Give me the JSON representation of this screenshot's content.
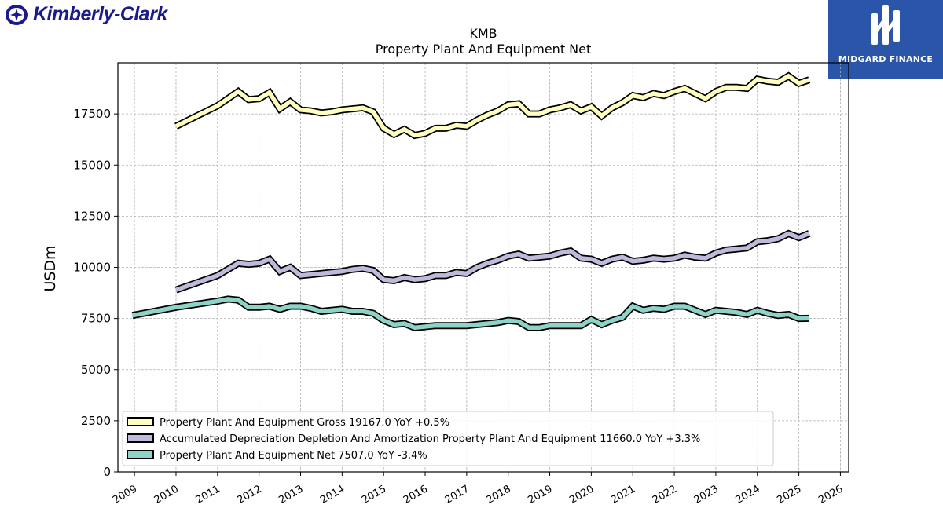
{
  "brand": {
    "company": "Kimberly-Clark",
    "logo_icon": "kimberly-clark-logo-icon"
  },
  "partner": {
    "name": "MIDGARD FINANCE",
    "logo_icon": "midgard-logo-icon",
    "bg_color": "#2a55a8"
  },
  "chart_data": {
    "type": "line",
    "title": "KMB",
    "subtitle": "Property Plant And Equipment Net",
    "ylabel": "USDm",
    "xlabel": "",
    "ylim": [
      0,
      20000
    ],
    "xlim": [
      2008.6,
      2026.2
    ],
    "yticks": [
      0,
      2500,
      5000,
      7500,
      10000,
      12500,
      15000,
      17500
    ],
    "xticks": [
      2009,
      2010,
      2011,
      2012,
      2013,
      2014,
      2015,
      2016,
      2017,
      2018,
      2019,
      2020,
      2021,
      2022,
      2023,
      2024,
      2025,
      2026
    ],
    "grid": true,
    "legend_position": "lower-left",
    "series": [
      {
        "name": "Property Plant And Equipment Gross",
        "legend_label": "Property Plant And Equipment Gross  19167.0 YoY +0.5%",
        "color": "#ffffc0",
        "points": [
          [
            2010.0,
            16900
          ],
          [
            2011.0,
            17900
          ],
          [
            2011.5,
            18600
          ],
          [
            2011.75,
            18200
          ],
          [
            2012.0,
            18250
          ],
          [
            2012.25,
            18550
          ],
          [
            2012.5,
            17750
          ],
          [
            2012.75,
            18100
          ],
          [
            2013.0,
            17700
          ],
          [
            2013.25,
            17650
          ],
          [
            2013.5,
            17550
          ],
          [
            2013.75,
            17600
          ],
          [
            2014.0,
            17700
          ],
          [
            2014.25,
            17750
          ],
          [
            2014.5,
            17800
          ],
          [
            2014.75,
            17600
          ],
          [
            2015.0,
            16800
          ],
          [
            2015.25,
            16500
          ],
          [
            2015.5,
            16750
          ],
          [
            2015.75,
            16450
          ],
          [
            2016.0,
            16550
          ],
          [
            2016.25,
            16800
          ],
          [
            2016.5,
            16800
          ],
          [
            2016.75,
            16950
          ],
          [
            2017.0,
            16900
          ],
          [
            2017.25,
            17200
          ],
          [
            2017.5,
            17450
          ],
          [
            2017.75,
            17650
          ],
          [
            2018.0,
            17950
          ],
          [
            2018.25,
            18000
          ],
          [
            2018.5,
            17500
          ],
          [
            2018.75,
            17500
          ],
          [
            2019.0,
            17700
          ],
          [
            2019.25,
            17800
          ],
          [
            2019.5,
            17950
          ],
          [
            2019.75,
            17650
          ],
          [
            2020.0,
            17850
          ],
          [
            2020.25,
            17400
          ],
          [
            2020.5,
            17800
          ],
          [
            2020.75,
            18050
          ],
          [
            2021.0,
            18400
          ],
          [
            2021.25,
            18300
          ],
          [
            2021.5,
            18500
          ],
          [
            2021.75,
            18400
          ],
          [
            2022.0,
            18600
          ],
          [
            2022.25,
            18750
          ],
          [
            2022.5,
            18500
          ],
          [
            2022.75,
            18250
          ],
          [
            2023.0,
            18600
          ],
          [
            2023.25,
            18800
          ],
          [
            2023.5,
            18800
          ],
          [
            2023.75,
            18750
          ],
          [
            2024.0,
            19200
          ],
          [
            2024.25,
            19100
          ],
          [
            2024.5,
            19050
          ],
          [
            2024.75,
            19350
          ],
          [
            2025.0,
            19000
          ],
          [
            2025.25,
            19167
          ]
        ]
      },
      {
        "name": "Accumulated Depreciation Depletion And Amortization Property Plant And Equipment",
        "legend_label": "Accumulated Depreciation Depletion And Amortization Property Plant And Equipment  11660.0 YoY +3.3%",
        "color": "#bebadb",
        "points": [
          [
            2010.0,
            8900
          ],
          [
            2011.0,
            9600
          ],
          [
            2011.5,
            10200
          ],
          [
            2011.75,
            10150
          ],
          [
            2012.0,
            10200
          ],
          [
            2012.25,
            10400
          ],
          [
            2012.5,
            9800
          ],
          [
            2012.75,
            10000
          ],
          [
            2013.0,
            9600
          ],
          [
            2013.25,
            9650
          ],
          [
            2013.5,
            9700
          ],
          [
            2013.75,
            9750
          ],
          [
            2014.0,
            9800
          ],
          [
            2014.25,
            9900
          ],
          [
            2014.5,
            9950
          ],
          [
            2014.75,
            9850
          ],
          [
            2015.0,
            9400
          ],
          [
            2015.25,
            9350
          ],
          [
            2015.5,
            9500
          ],
          [
            2015.75,
            9400
          ],
          [
            2016.0,
            9450
          ],
          [
            2016.25,
            9600
          ],
          [
            2016.5,
            9600
          ],
          [
            2016.75,
            9750
          ],
          [
            2017.0,
            9700
          ],
          [
            2017.25,
            10000
          ],
          [
            2017.5,
            10200
          ],
          [
            2017.75,
            10350
          ],
          [
            2018.0,
            10550
          ],
          [
            2018.25,
            10650
          ],
          [
            2018.5,
            10450
          ],
          [
            2018.75,
            10500
          ],
          [
            2019.0,
            10550
          ],
          [
            2019.25,
            10700
          ],
          [
            2019.5,
            10800
          ],
          [
            2019.75,
            10450
          ],
          [
            2020.0,
            10400
          ],
          [
            2020.25,
            10200
          ],
          [
            2020.5,
            10400
          ],
          [
            2020.75,
            10500
          ],
          [
            2021.0,
            10300
          ],
          [
            2021.25,
            10350
          ],
          [
            2021.5,
            10450
          ],
          [
            2021.75,
            10400
          ],
          [
            2022.0,
            10450
          ],
          [
            2022.25,
            10600
          ],
          [
            2022.5,
            10500
          ],
          [
            2022.75,
            10450
          ],
          [
            2023.0,
            10700
          ],
          [
            2023.25,
            10850
          ],
          [
            2023.5,
            10900
          ],
          [
            2023.75,
            10950
          ],
          [
            2024.0,
            11250
          ],
          [
            2024.25,
            11300
          ],
          [
            2024.5,
            11400
          ],
          [
            2024.75,
            11650
          ],
          [
            2025.0,
            11450
          ],
          [
            2025.25,
            11660
          ]
        ]
      },
      {
        "name": "Property Plant And Equipment Net",
        "legend_label": "Property Plant And Equipment Net  7507.0 YoY -3.4%",
        "color": "#8dd3c7",
        "points": [
          [
            2008.95,
            7650
          ],
          [
            2010.0,
            8050
          ],
          [
            2011.0,
            8350
          ],
          [
            2011.25,
            8450
          ],
          [
            2011.5,
            8400
          ],
          [
            2011.75,
            8050
          ],
          [
            2012.0,
            8050
          ],
          [
            2012.25,
            8100
          ],
          [
            2012.5,
            7950
          ],
          [
            2012.75,
            8100
          ],
          [
            2013.0,
            8100
          ],
          [
            2013.25,
            8000
          ],
          [
            2013.5,
            7850
          ],
          [
            2013.75,
            7900
          ],
          [
            2014.0,
            7950
          ],
          [
            2014.25,
            7850
          ],
          [
            2014.5,
            7850
          ],
          [
            2014.75,
            7750
          ],
          [
            2015.0,
            7400
          ],
          [
            2015.25,
            7200
          ],
          [
            2015.5,
            7250
          ],
          [
            2015.75,
            7050
          ],
          [
            2016.0,
            7100
          ],
          [
            2016.25,
            7150
          ],
          [
            2016.5,
            7150
          ],
          [
            2016.75,
            7150
          ],
          [
            2017.0,
            7150
          ],
          [
            2017.25,
            7200
          ],
          [
            2017.5,
            7250
          ],
          [
            2017.75,
            7300
          ],
          [
            2018.0,
            7400
          ],
          [
            2018.25,
            7350
          ],
          [
            2018.5,
            7050
          ],
          [
            2018.75,
            7050
          ],
          [
            2019.0,
            7150
          ],
          [
            2019.25,
            7150
          ],
          [
            2019.5,
            7150
          ],
          [
            2019.75,
            7150
          ],
          [
            2020.0,
            7450
          ],
          [
            2020.25,
            7200
          ],
          [
            2020.5,
            7400
          ],
          [
            2020.75,
            7550
          ],
          [
            2021.0,
            8100
          ],
          [
            2021.25,
            7900
          ],
          [
            2021.5,
            8000
          ],
          [
            2021.75,
            7950
          ],
          [
            2022.0,
            8100
          ],
          [
            2022.25,
            8100
          ],
          [
            2022.5,
            7900
          ],
          [
            2022.75,
            7700
          ],
          [
            2023.0,
            7900
          ],
          [
            2023.25,
            7850
          ],
          [
            2023.5,
            7800
          ],
          [
            2023.75,
            7700
          ],
          [
            2024.0,
            7900
          ],
          [
            2024.25,
            7750
          ],
          [
            2024.5,
            7650
          ],
          [
            2024.75,
            7700
          ],
          [
            2025.0,
            7500
          ],
          [
            2025.25,
            7507
          ]
        ]
      }
    ]
  }
}
